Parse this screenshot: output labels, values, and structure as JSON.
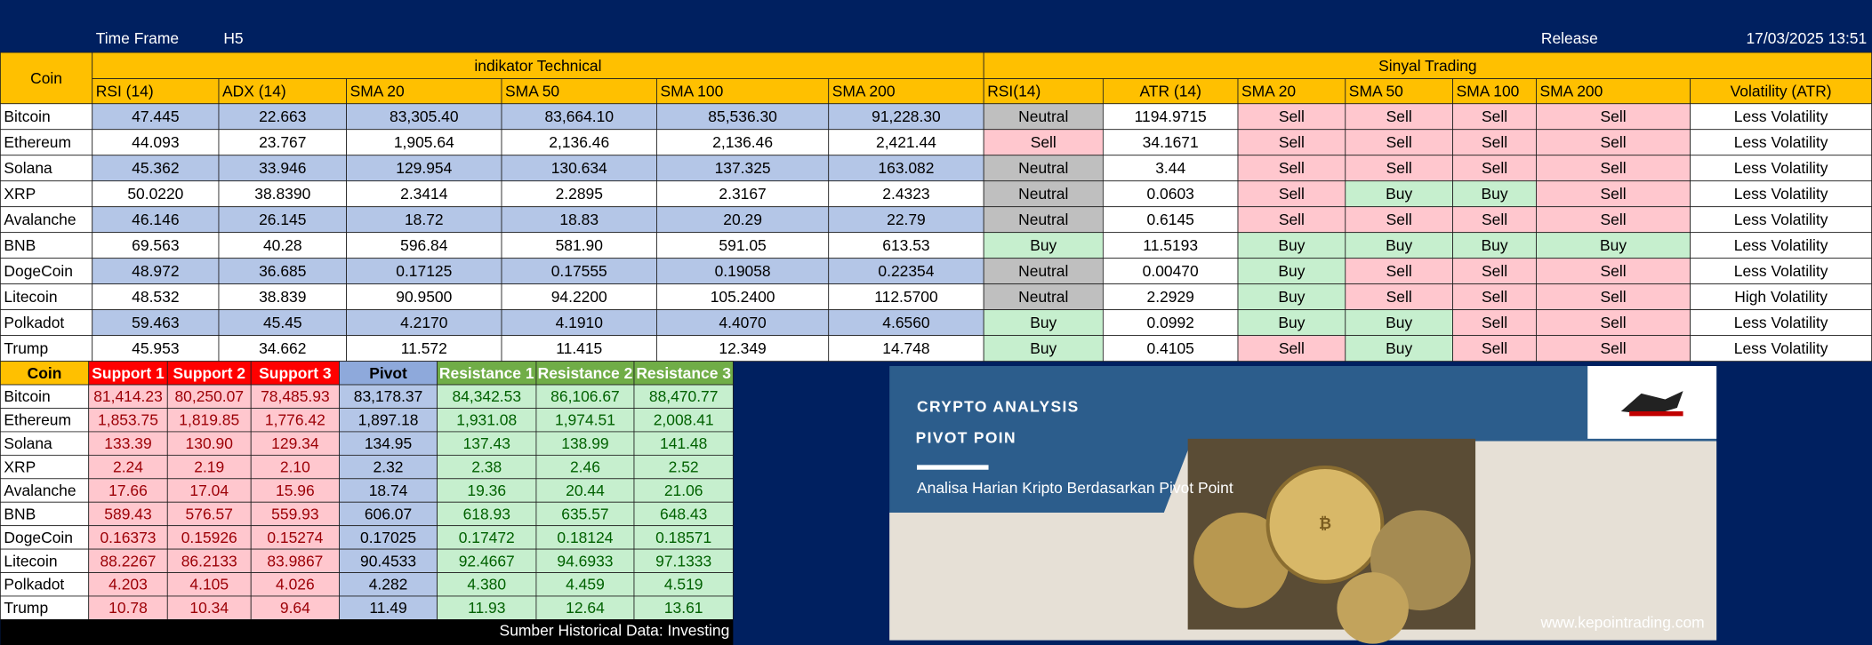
{
  "header": {
    "time_frame_label": "Time Frame",
    "time_frame": "H5",
    "release_label": "Release",
    "release": "17/03/2025 13:51"
  },
  "signal_table": {
    "coin_header": "Coin",
    "group_technical": "indikator Technical",
    "group_signal": "Sinyal Trading",
    "columns": [
      "RSI (14)",
      "ADX (14)",
      "SMA 20",
      "SMA 50",
      "SMA 100",
      "SMA 200",
      "RSI(14)",
      "ATR (14)",
      "SMA 20",
      "SMA 50",
      "SMA 100",
      "SMA 200",
      "Volatility (ATR)"
    ],
    "rows": [
      [
        "Bitcoin",
        "47.445",
        "22.663",
        "83,305.40",
        "83,664.10",
        "85,536.30",
        "91,228.30",
        "Neutral",
        "1194.9715",
        "Sell",
        "Sell",
        "Sell",
        "Sell",
        "Less Volatility"
      ],
      [
        "Ethereum",
        "44.093",
        "23.767",
        "1,905.64",
        "2,136.46",
        "2,136.46",
        "2,421.44",
        "Sell",
        "34.1671",
        "Sell",
        "Sell",
        "Sell",
        "Sell",
        "Less Volatility"
      ],
      [
        "Solana",
        "45.362",
        "33.946",
        "129.954",
        "130.634",
        "137.325",
        "163.082",
        "Neutral",
        "3.44",
        "Sell",
        "Sell",
        "Sell",
        "Sell",
        "Less Volatility"
      ],
      [
        "XRP",
        "50.0220",
        "38.8390",
        "2.3414",
        "2.2895",
        "2.3167",
        "2.4323",
        "Neutral",
        "0.0603",
        "Sell",
        "Buy",
        "Buy",
        "Sell",
        "Less Volatility"
      ],
      [
        "Avalanche",
        "46.146",
        "26.145",
        "18.72",
        "18.83",
        "20.29",
        "22.79",
        "Neutral",
        "0.6145",
        "Sell",
        "Sell",
        "Sell",
        "Sell",
        "Less Volatility"
      ],
      [
        "BNB",
        "69.563",
        "40.28",
        "596.84",
        "581.90",
        "591.05",
        "613.53",
        "Buy",
        "11.5193",
        "Buy",
        "Buy",
        "Buy",
        "Buy",
        "Less Volatility"
      ],
      [
        "DogeCoin",
        "48.972",
        "36.685",
        "0.17125",
        "0.17555",
        "0.19058",
        "0.22354",
        "Neutral",
        "0.00470",
        "Buy",
        "Sell",
        "Sell",
        "Sell",
        "Less Volatility"
      ],
      [
        "Litecoin",
        "48.532",
        "38.839",
        "90.9500",
        "94.2200",
        "105.2400",
        "112.5700",
        "Neutral",
        "2.2929",
        "Buy",
        "Sell",
        "Sell",
        "Sell",
        "High Volatility"
      ],
      [
        "Polkadot",
        "59.463",
        "45.45",
        "4.2170",
        "4.1910",
        "4.4070",
        "4.6560",
        "Buy",
        "0.0992",
        "Buy",
        "Buy",
        "Sell",
        "Sell",
        "Less Volatility"
      ],
      [
        "Trump",
        "45.953",
        "34.662",
        "11.572",
        "11.415",
        "12.349",
        "14.748",
        "Buy",
        "0.4105",
        "Sell",
        "Buy",
        "Sell",
        "Sell",
        "Less Volatility"
      ]
    ]
  },
  "pivot_table": {
    "columns": [
      "Coin",
      "Support 1",
      "Support 2",
      "Support 3",
      "Pivot",
      "Resistance 1",
      "Resistance 2",
      "Resistance 3"
    ],
    "rows": [
      [
        "Bitcoin",
        "81,414.23",
        "80,250.07",
        "78,485.93",
        "83,178.37",
        "84,342.53",
        "86,106.67",
        "88,470.77"
      ],
      [
        "Ethereum",
        "1,853.75",
        "1,819.85",
        "1,776.42",
        "1,897.18",
        "1,931.08",
        "1,974.51",
        "2,008.41"
      ],
      [
        "Solana",
        "133.39",
        "130.90",
        "129.34",
        "134.95",
        "137.43",
        "138.99",
        "141.48"
      ],
      [
        "XRP",
        "2.24",
        "2.19",
        "2.10",
        "2.32",
        "2.38",
        "2.46",
        "2.52"
      ],
      [
        "Avalanche",
        "17.66",
        "17.04",
        "15.96",
        "18.74",
        "19.36",
        "20.44",
        "21.06"
      ],
      [
        "BNB",
        "589.43",
        "576.57",
        "559.93",
        "606.07",
        "618.93",
        "635.57",
        "648.43"
      ],
      [
        "DogeCoin",
        "0.16373",
        "0.15926",
        "0.15274",
        "0.17025",
        "0.17472",
        "0.18124",
        "0.18571"
      ],
      [
        "Litecoin",
        "88.2267",
        "86.2133",
        "83.9867",
        "90.4533",
        "92.4667",
        "94.6933",
        "97.1333"
      ],
      [
        "Polkadot",
        "4.203",
        "4.105",
        "4.026",
        "4.282",
        "4.380",
        "4.459",
        "4.519"
      ],
      [
        "Trump",
        "10.78",
        "10.34",
        "9.64",
        "11.49",
        "11.93",
        "12.64",
        "13.61"
      ]
    ],
    "source": "Sumber Historical Data: Investing"
  },
  "banner": {
    "kicker": "CRYPTO ANALYSIS",
    "title": "PIVOT POIN",
    "subtitle": "Analisa Harian Kripto Berdasarkan Pivot Point",
    "url": "www.kepointrading.com"
  }
}
